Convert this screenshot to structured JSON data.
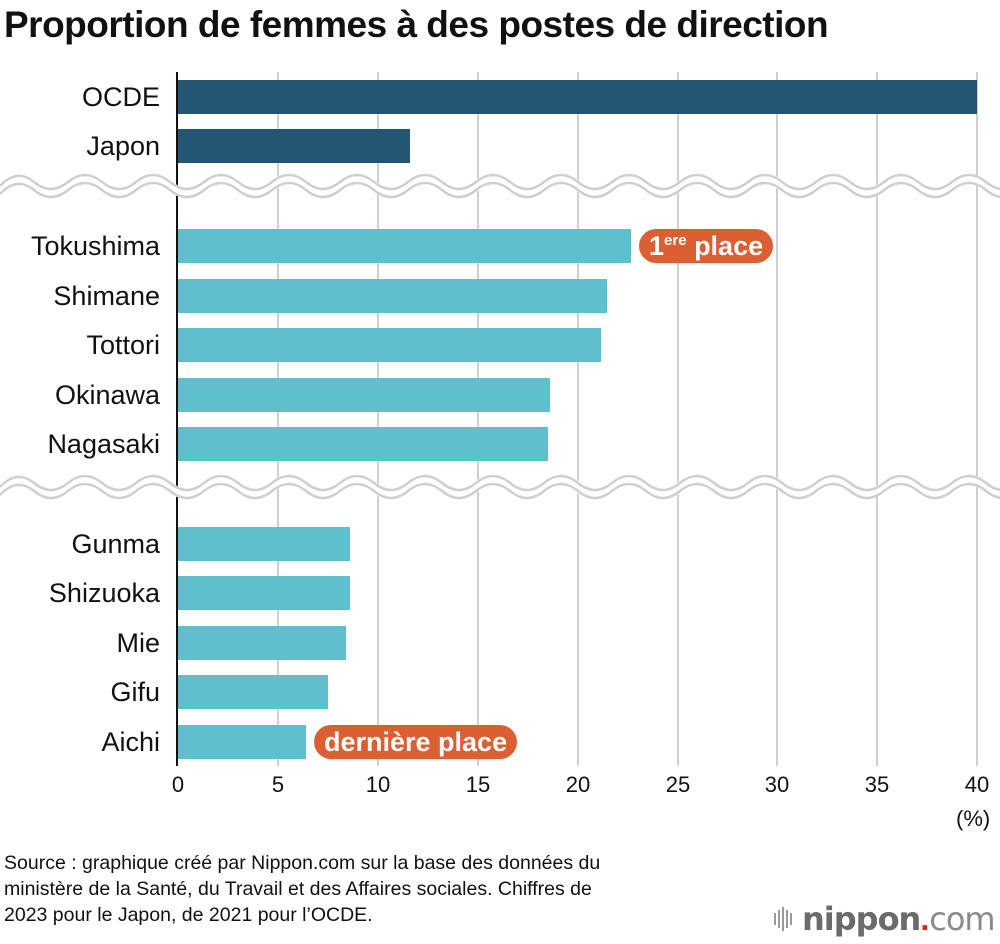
{
  "title": "Proportion de femmes à des postes de direction",
  "colors": {
    "benchmark_bar": "#235674",
    "prefecture_bar": "#5dc0cc",
    "badge": "#db5f32",
    "grid": "#cfcfcf",
    "logo_dot": "#e0201b"
  },
  "bars": [
    {
      "label": "OCDE",
      "value": 40.0,
      "group": "benchmark"
    },
    {
      "label": "Japon",
      "value": 11.6,
      "group": "benchmark"
    },
    {
      "label": "Tokushima",
      "value": 22.7,
      "group": "top5"
    },
    {
      "label": "Shimane",
      "value": 21.5,
      "group": "top5"
    },
    {
      "label": "Tottori",
      "value": 21.2,
      "group": "top5"
    },
    {
      "label": "Okinawa",
      "value": 18.6,
      "group": "top5"
    },
    {
      "label": "Nagasaki",
      "value": 18.5,
      "group": "top5"
    },
    {
      "label": "Gunma",
      "value": 8.6,
      "group": "bottom5"
    },
    {
      "label": "Shizuoka",
      "value": 8.6,
      "group": "bottom5"
    },
    {
      "label": "Mie",
      "value": 8.4,
      "group": "bottom5"
    },
    {
      "label": "Gifu",
      "value": 7.5,
      "group": "bottom5"
    },
    {
      "label": "Aichi",
      "value": 6.4,
      "group": "bottom5"
    }
  ],
  "badges": {
    "first": {
      "num": "1",
      "sup": "ere",
      "text": " place"
    },
    "last": {
      "text": "dernière place"
    }
  },
  "axis": {
    "ticks": [
      "0",
      "5",
      "10",
      "15",
      "20",
      "25",
      "30",
      "35",
      "40"
    ],
    "unit": "(%)"
  },
  "source": {
    "line1": "Source : graphique créé par Nippon.com sur la base des données du",
    "line2": "ministère de la Santé, du Travail et des Affaires sociales. Chiffres de",
    "line3": "2023 pour le Japon, de 2021 pour l’OCDE."
  },
  "logo": {
    "name": "nippon",
    "dot": ".",
    "tld": "com"
  },
  "chart_data": {
    "type": "bar",
    "orientation": "horizontal",
    "title": "Proportion de femmes à des postes de direction",
    "categories": [
      "OCDE",
      "Japon",
      "Tokushima",
      "Shimane",
      "Tottori",
      "Okinawa",
      "Nagasaki",
      "Gunma",
      "Shizuoka",
      "Mie",
      "Gifu",
      "Aichi"
    ],
    "values": [
      40.0,
      11.6,
      22.7,
      21.5,
      21.2,
      18.6,
      18.5,
      8.6,
      8.6,
      8.4,
      7.5,
      6.4
    ],
    "xlabel": "(%)",
    "ylabel": "",
    "xlim": [
      0,
      40
    ],
    "xticks": [
      0,
      5,
      10,
      15,
      20,
      25,
      30,
      35,
      40
    ],
    "grid": "vertical",
    "annotations": [
      {
        "category": "Tokushima",
        "text": "1ere place"
      },
      {
        "category": "Aichi",
        "text": "dernière place"
      }
    ],
    "axis_breaks": [
      "between Japon and Tokushima",
      "between Nagasaki and Gunma"
    ],
    "source": "Source : graphique créé par Nippon.com sur la base des données du ministère de la Santé, du Travail et des Affaires sociales. Chiffres de 2023 pour le Japon, de 2021 pour l’OCDE."
  }
}
